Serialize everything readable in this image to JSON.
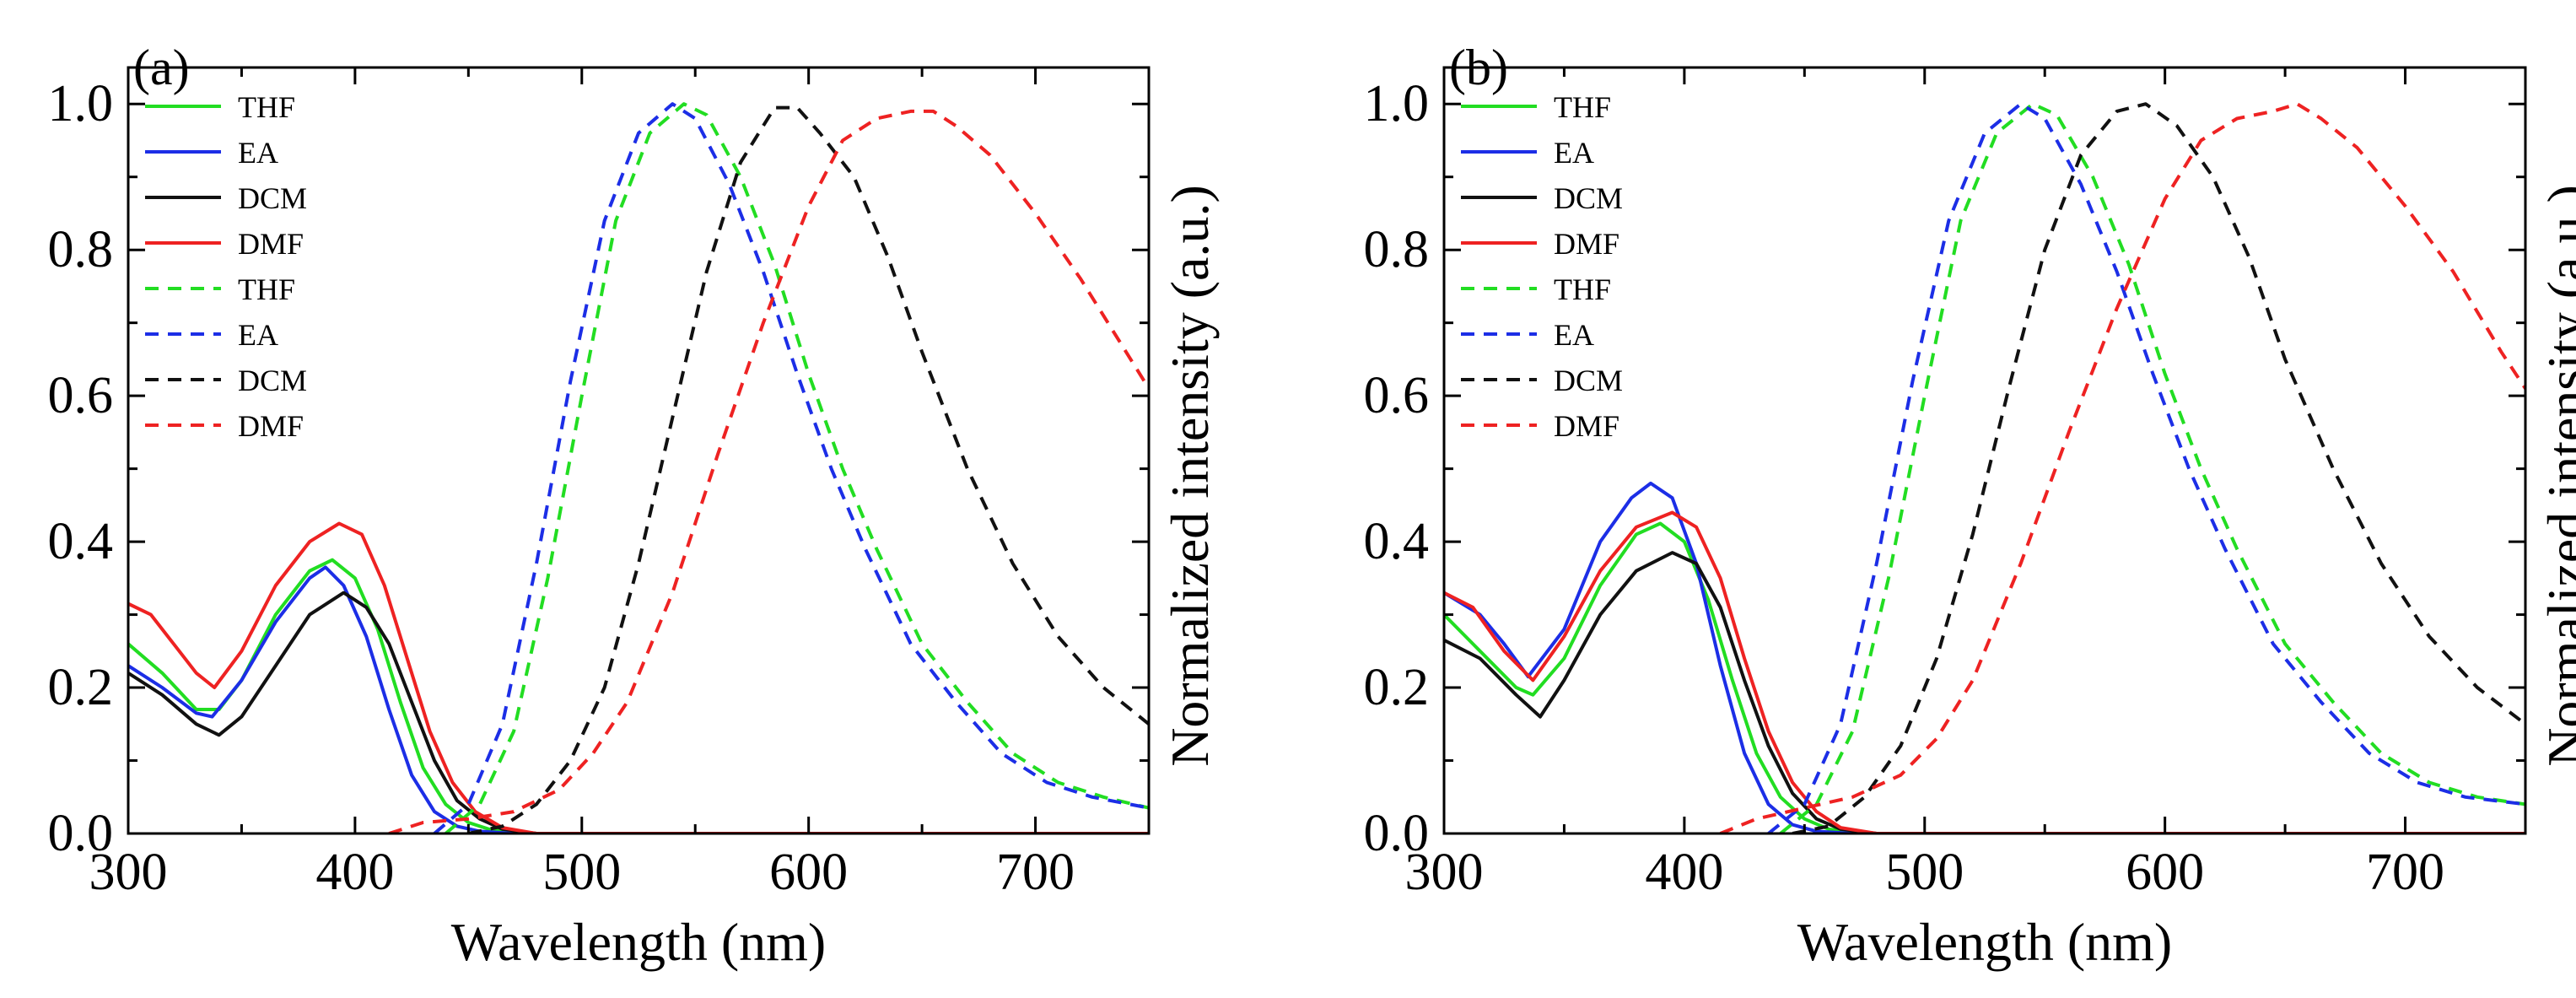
{
  "figure": {
    "description_free": true
  },
  "colors": {
    "THF": "#22dd22",
    "EA": "#1c2ee6",
    "DCM": "#111111",
    "DMF": "#ee2222",
    "axis": "#000000"
  },
  "chart_data": [
    {
      "type": "line",
      "panel_label": "(a)",
      "xlabel": "Wavelength (nm)",
      "ylabel_left": "",
      "ylabel_right": "Normalized intensity (a.u.)",
      "xlim": [
        300,
        750
      ],
      "ylim": [
        0,
        1.05
      ],
      "x_ticks": [
        300,
        400,
        500,
        600,
        700
      ],
      "y_ticks": [
        "0.0",
        "0.2",
        "0.4",
        "0.6",
        "0.8",
        "1.0"
      ],
      "y_tick_values": [
        0.0,
        0.2,
        0.4,
        0.6,
        0.8,
        1.0
      ],
      "legend": [
        {
          "label": "THF",
          "style": "solid",
          "solvent": "THF"
        },
        {
          "label": "EA",
          "style": "solid",
          "solvent": "EA"
        },
        {
          "label": "DCM",
          "style": "solid",
          "solvent": "DCM"
        },
        {
          "label": "DMF",
          "style": "solid",
          "solvent": "DMF"
        },
        {
          "label": "THF",
          "style": "dashed",
          "solvent": "THF"
        },
        {
          "label": "EA",
          "style": "dashed",
          "solvent": "EA"
        },
        {
          "label": "DCM",
          "style": "dashed",
          "solvent": "DCM"
        },
        {
          "label": "DMF",
          "style": "dashed",
          "solvent": "DMF"
        }
      ],
      "series": [
        {
          "name": "THF absorption",
          "solvent": "THF",
          "style": "solid",
          "x": [
            300,
            315,
            330,
            340,
            350,
            365,
            380,
            390,
            400,
            410,
            420,
            430,
            440,
            450,
            460,
            480,
            750
          ],
          "y": [
            0.26,
            0.22,
            0.17,
            0.17,
            0.21,
            0.3,
            0.36,
            0.375,
            0.35,
            0.28,
            0.18,
            0.09,
            0.04,
            0.015,
            0.005,
            0.0,
            0.0
          ]
        },
        {
          "name": "EA absorption",
          "solvent": "EA",
          "style": "solid",
          "x": [
            300,
            315,
            330,
            337,
            350,
            365,
            380,
            387,
            395,
            405,
            415,
            425,
            435,
            445,
            455,
            470,
            750
          ],
          "y": [
            0.23,
            0.2,
            0.165,
            0.16,
            0.21,
            0.29,
            0.35,
            0.365,
            0.34,
            0.27,
            0.17,
            0.08,
            0.03,
            0.01,
            0.003,
            0.0,
            0.0
          ]
        },
        {
          "name": "DCM absorption",
          "solvent": "DCM",
          "style": "solid",
          "x": [
            300,
            315,
            330,
            340,
            350,
            365,
            380,
            395,
            405,
            415,
            425,
            435,
            445,
            455,
            465,
            480,
            750
          ],
          "y": [
            0.22,
            0.19,
            0.15,
            0.135,
            0.16,
            0.23,
            0.3,
            0.33,
            0.31,
            0.26,
            0.18,
            0.1,
            0.045,
            0.02,
            0.006,
            0.0,
            0.0
          ]
        },
        {
          "name": "DMF absorption",
          "solvent": "DMF",
          "style": "solid",
          "x": [
            300,
            310,
            320,
            330,
            338,
            350,
            365,
            380,
            393,
            403,
            413,
            423,
            433,
            443,
            453,
            465,
            480,
            750
          ],
          "y": [
            0.315,
            0.3,
            0.26,
            0.22,
            0.2,
            0.25,
            0.34,
            0.4,
            0.425,
            0.41,
            0.34,
            0.24,
            0.14,
            0.07,
            0.03,
            0.008,
            0.0,
            0.0
          ]
        },
        {
          "name": "THF emission",
          "solvent": "THF",
          "style": "dashed",
          "x": [
            440,
            455,
            470,
            485,
            500,
            515,
            530,
            545,
            555,
            570,
            585,
            600,
            615,
            630,
            650,
            670,
            690,
            710,
            730,
            750
          ],
          "y": [
            0.0,
            0.04,
            0.14,
            0.35,
            0.6,
            0.84,
            0.96,
            1.0,
            0.985,
            0.9,
            0.78,
            0.63,
            0.5,
            0.39,
            0.26,
            0.18,
            0.11,
            0.07,
            0.05,
            0.035
          ]
        },
        {
          "name": "EA emission",
          "solvent": "EA",
          "style": "dashed",
          "x": [
            435,
            450,
            465,
            480,
            495,
            510,
            525,
            540,
            550,
            565,
            580,
            595,
            610,
            625,
            645,
            665,
            685,
            705,
            725,
            750
          ],
          "y": [
            0.0,
            0.04,
            0.15,
            0.37,
            0.62,
            0.84,
            0.96,
            1.0,
            0.98,
            0.89,
            0.77,
            0.63,
            0.5,
            0.39,
            0.26,
            0.18,
            0.11,
            0.07,
            0.05,
            0.035
          ]
        },
        {
          "name": "DCM emission",
          "solvent": "DCM",
          "style": "dashed",
          "x": [
            450,
            465,
            480,
            495,
            510,
            525,
            540,
            555,
            570,
            585,
            595,
            605,
            620,
            635,
            650,
            670,
            690,
            710,
            730,
            750
          ],
          "y": [
            0.0,
            0.01,
            0.04,
            0.1,
            0.2,
            0.37,
            0.57,
            0.77,
            0.92,
            0.995,
            0.995,
            0.96,
            0.9,
            0.79,
            0.66,
            0.5,
            0.37,
            0.27,
            0.2,
            0.15
          ]
        },
        {
          "name": "DMF emission",
          "solvent": "DMF",
          "style": "dashed",
          "x": [
            415,
            430,
            450,
            470,
            490,
            505,
            520,
            540,
            560,
            580,
            600,
            615,
            630,
            645,
            655,
            665,
            680,
            700,
            720,
            740,
            750
          ],
          "y": [
            0.0,
            0.015,
            0.02,
            0.03,
            0.06,
            0.11,
            0.18,
            0.33,
            0.52,
            0.7,
            0.86,
            0.95,
            0.98,
            0.99,
            0.99,
            0.97,
            0.93,
            0.85,
            0.76,
            0.66,
            0.61
          ]
        }
      ]
    },
    {
      "type": "line",
      "panel_label": "(b)",
      "xlabel": "Wavelength (nm)",
      "ylabel_left": "",
      "ylabel_right": "Normalized intensity (a.u.)",
      "xlim": [
        300,
        750
      ],
      "ylim": [
        0,
        1.05
      ],
      "x_ticks": [
        300,
        400,
        500,
        600,
        700
      ],
      "y_ticks": [
        "0.0",
        "0.2",
        "0.4",
        "0.6",
        "0.8",
        "1.0"
      ],
      "y_tick_values": [
        0.0,
        0.2,
        0.4,
        0.6,
        0.8,
        1.0
      ],
      "legend": [
        {
          "label": "THF",
          "style": "solid",
          "solvent": "THF"
        },
        {
          "label": "EA",
          "style": "solid",
          "solvent": "EA"
        },
        {
          "label": "DCM",
          "style": "solid",
          "solvent": "DCM"
        },
        {
          "label": "DMF",
          "style": "solid",
          "solvent": "DMF"
        },
        {
          "label": "THF",
          "style": "dashed",
          "solvent": "THF"
        },
        {
          "label": "EA",
          "style": "dashed",
          "solvent": "EA"
        },
        {
          "label": "DCM",
          "style": "dashed",
          "solvent": "DCM"
        },
        {
          "label": "DMF",
          "style": "dashed",
          "solvent": "DMF"
        }
      ],
      "series": [
        {
          "name": "THF absorption",
          "solvent": "THF",
          "style": "solid",
          "x": [
            300,
            315,
            330,
            337,
            350,
            365,
            380,
            390,
            400,
            410,
            420,
            430,
            440,
            450,
            460,
            475,
            750
          ],
          "y": [
            0.3,
            0.25,
            0.2,
            0.19,
            0.24,
            0.34,
            0.41,
            0.425,
            0.4,
            0.32,
            0.21,
            0.11,
            0.05,
            0.02,
            0.006,
            0.0,
            0.0
          ]
        },
        {
          "name": "EA absorption",
          "solvent": "EA",
          "style": "solid",
          "x": [
            300,
            315,
            325,
            335,
            350,
            365,
            378,
            386,
            395,
            405,
            415,
            425,
            435,
            445,
            455,
            470,
            750
          ],
          "y": [
            0.33,
            0.3,
            0.26,
            0.215,
            0.28,
            0.4,
            0.46,
            0.48,
            0.46,
            0.37,
            0.23,
            0.11,
            0.04,
            0.012,
            0.003,
            0.0,
            0.0
          ]
        },
        {
          "name": "DCM absorption",
          "solvent": "DCM",
          "style": "solid",
          "x": [
            300,
            315,
            330,
            340,
            350,
            365,
            380,
            395,
            405,
            415,
            425,
            435,
            445,
            455,
            465,
            480,
            750
          ],
          "y": [
            0.265,
            0.24,
            0.19,
            0.16,
            0.21,
            0.3,
            0.36,
            0.385,
            0.37,
            0.31,
            0.21,
            0.12,
            0.055,
            0.02,
            0.006,
            0.0,
            0.0
          ]
        },
        {
          "name": "DMF absorption",
          "solvent": "DMF",
          "style": "solid",
          "x": [
            300,
            312,
            325,
            337,
            350,
            365,
            380,
            395,
            405,
            415,
            425,
            435,
            445,
            455,
            465,
            480,
            750
          ],
          "y": [
            0.33,
            0.31,
            0.25,
            0.21,
            0.27,
            0.36,
            0.42,
            0.44,
            0.42,
            0.35,
            0.24,
            0.14,
            0.07,
            0.03,
            0.008,
            0.0,
            0.0
          ]
        },
        {
          "name": "THF emission",
          "solvent": "THF",
          "style": "dashed",
          "x": [
            440,
            455,
            470,
            485,
            500,
            515,
            530,
            545,
            555,
            570,
            585,
            600,
            615,
            630,
            650,
            670,
            690,
            710,
            730,
            750
          ],
          "y": [
            0.0,
            0.04,
            0.14,
            0.35,
            0.6,
            0.84,
            0.96,
            1.0,
            0.985,
            0.9,
            0.78,
            0.63,
            0.5,
            0.39,
            0.26,
            0.18,
            0.11,
            0.07,
            0.05,
            0.04
          ]
        },
        {
          "name": "EA emission",
          "solvent": "EA",
          "style": "dashed",
          "x": [
            435,
            450,
            465,
            480,
            495,
            510,
            525,
            540,
            550,
            565,
            580,
            595,
            610,
            625,
            645,
            665,
            685,
            705,
            725,
            750
          ],
          "y": [
            0.0,
            0.04,
            0.15,
            0.37,
            0.62,
            0.84,
            0.96,
            1.0,
            0.98,
            0.89,
            0.77,
            0.63,
            0.5,
            0.39,
            0.26,
            0.18,
            0.11,
            0.07,
            0.05,
            0.04
          ]
        },
        {
          "name": "DCM emission",
          "solvent": "DCM",
          "style": "dashed",
          "x": [
            445,
            460,
            475,
            490,
            505,
            520,
            535,
            550,
            565,
            580,
            592,
            605,
            620,
            635,
            650,
            670,
            690,
            710,
            730,
            750
          ],
          "y": [
            0.0,
            0.01,
            0.05,
            0.12,
            0.24,
            0.41,
            0.61,
            0.8,
            0.93,
            0.99,
            1.0,
            0.97,
            0.9,
            0.79,
            0.65,
            0.5,
            0.37,
            0.27,
            0.2,
            0.15
          ]
        },
        {
          "name": "DMF emission",
          "solvent": "DMF",
          "style": "dashed",
          "x": [
            415,
            430,
            450,
            470,
            490,
            505,
            520,
            540,
            560,
            580,
            600,
            615,
            630,
            645,
            655,
            665,
            680,
            700,
            720,
            740,
            750
          ],
          "y": [
            0.0,
            0.02,
            0.035,
            0.05,
            0.08,
            0.13,
            0.21,
            0.37,
            0.55,
            0.72,
            0.87,
            0.95,
            0.98,
            0.99,
            1.0,
            0.98,
            0.94,
            0.86,
            0.77,
            0.66,
            0.61
          ]
        }
      ]
    }
  ]
}
